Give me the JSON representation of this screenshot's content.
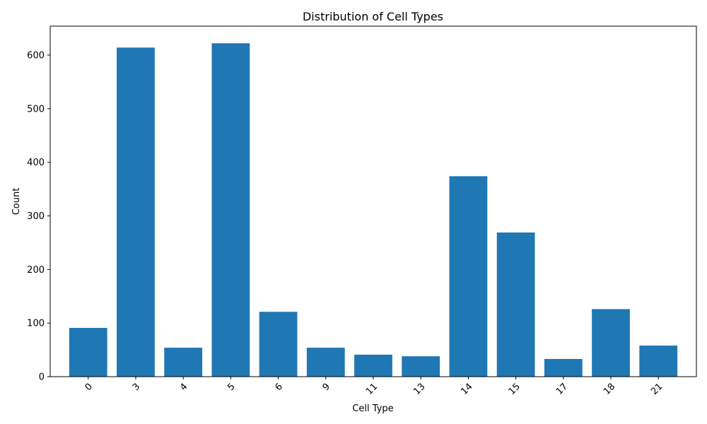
{
  "chart_data": {
    "type": "bar",
    "title": "Distribution of Cell Types",
    "xlabel": "Cell Type",
    "ylabel": "Count",
    "categories": [
      "0",
      "3",
      "4",
      "5",
      "6",
      "9",
      "11",
      "13",
      "14",
      "15",
      "17",
      "18",
      "21"
    ],
    "values": [
      91,
      614,
      54,
      622,
      121,
      54,
      41,
      38,
      374,
      269,
      33,
      126,
      58
    ],
    "ylim": [
      0,
      654
    ],
    "yticks": [
      0,
      100,
      200,
      300,
      400,
      500,
      600
    ],
    "bar_color": "#1f77b4",
    "grid": false,
    "legend": "none"
  }
}
